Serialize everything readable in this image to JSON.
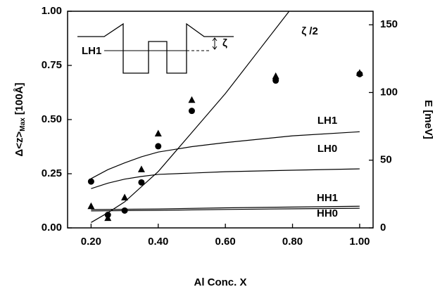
{
  "chart_data": {
    "type": "line",
    "x_label": "Al Conc. X",
    "y_label": {
      "main": "Δ<z>",
      "sub": "Max",
      "unit": "[100Å]"
    },
    "y2_label": "E [meV]",
    "xlim": [
      0.13,
      1.04
    ],
    "ylim": [
      0,
      1
    ],
    "y2lim": [
      0,
      160
    ],
    "xticks": [
      {
        "value": 0.2,
        "label": "0.20"
      },
      {
        "value": 0.4,
        "label": "0.40"
      },
      {
        "value": 0.6,
        "label": "0.60"
      },
      {
        "value": 0.8,
        "label": "0.80"
      },
      {
        "value": 1.0,
        "label": "1.00"
      }
    ],
    "yticks": [
      {
        "value": 0,
        "label": "0.00"
      },
      {
        "value": 0.25,
        "label": "0.25"
      },
      {
        "value": 0.5,
        "label": "0.50"
      },
      {
        "value": 0.75,
        "label": "0.75"
      },
      {
        "value": 1.0,
        "label": "1.00"
      }
    ],
    "y2ticks": [
      0,
      50,
      100,
      150
    ],
    "inset_labels": [
      "LH1",
      "ζ"
    ],
    "series": [
      {
        "name": "ζ /2",
        "kind": "line",
        "color": "#000",
        "x": [
          0.2,
          0.25,
          0.3,
          0.35,
          0.4,
          0.45,
          0.5,
          0.55,
          0.6,
          0.65,
          0.7,
          0.75,
          0.79
        ],
        "values": [
          0.025,
          0.07,
          0.12,
          0.19,
          0.26,
          0.35,
          0.44,
          0.53,
          0.62,
          0.72,
          0.82,
          0.92,
          1.0
        ]
      },
      {
        "name": "LH1",
        "kind": "line",
        "axis": "y2",
        "color": "#000",
        "x": [
          0.2,
          0.25,
          0.3,
          0.35,
          0.4,
          0.5,
          0.6,
          0.8,
          1.0
        ],
        "values": [
          36.4,
          43,
          48,
          52.5,
          56,
          60,
          63,
          68,
          71
        ]
      },
      {
        "name": "LH0",
        "kind": "line",
        "axis": "y2",
        "color": "#000",
        "x": [
          0.2,
          0.25,
          0.3,
          0.35,
          0.4,
          0.5,
          0.6,
          0.8,
          1.0
        ],
        "values": [
          29,
          33,
          36,
          38,
          39.5,
          40.5,
          41.5,
          42.6,
          43.6
        ]
      },
      {
        "name": "HH1",
        "kind": "line",
        "axis": "y2",
        "color": "#000",
        "x": [
          0.2,
          0.4,
          0.6,
          0.8,
          1.0
        ],
        "values": [
          13.5,
          14,
          14.8,
          15.4,
          16
        ]
      },
      {
        "name": "HH0",
        "kind": "line",
        "axis": "y2",
        "color": "#000",
        "x": [
          0.2,
          0.4,
          0.6,
          0.8,
          1.0
        ],
        "values": [
          12.5,
          13,
          13.6,
          14.1,
          14.5
        ]
      },
      {
        "kind": "circle",
        "color": "#000",
        "x": [
          0.2,
          0.25,
          0.3,
          0.35,
          0.4,
          0.5,
          0.75,
          1.0
        ],
        "values": [
          0.214,
          0.06,
          0.08,
          0.21,
          0.377,
          0.54,
          0.68,
          0.71
        ]
      },
      {
        "kind": "triangle",
        "color": "#000",
        "x": [
          0.2,
          0.25,
          0.3,
          0.35,
          0.4,
          0.5,
          0.75,
          1.0
        ],
        "values": [
          0.1,
          0.045,
          0.14,
          0.27,
          0.435,
          0.59,
          0.7,
          0.715
        ]
      }
    ]
  }
}
